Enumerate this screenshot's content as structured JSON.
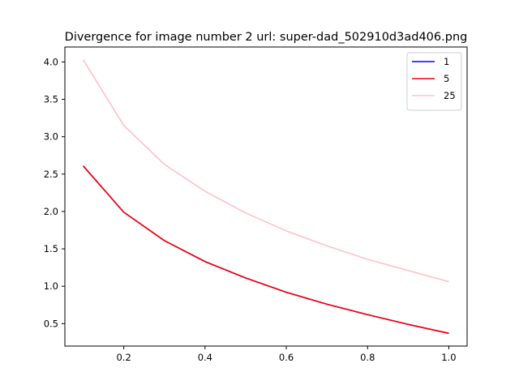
{
  "chart_data": {
    "type": "line",
    "title": "Divergence for image number 2 url: super-dad_502910d3ad406.png",
    "xlabel": "",
    "ylabel": "",
    "xlim": [
      0.055,
      1.045
    ],
    "ylim": [
      0.2,
      4.2
    ],
    "xticks": [
      0.2,
      0.4,
      0.6,
      0.8,
      1.0
    ],
    "yticks": [
      0.5,
      1.0,
      1.5,
      2.0,
      2.5,
      3.0,
      3.5,
      4.0
    ],
    "grid": false,
    "legend_position": "top-right",
    "x": [
      0.1,
      0.2,
      0.3,
      0.4,
      0.5,
      0.6,
      0.7,
      0.8,
      0.9,
      1.0
    ],
    "series": [
      {
        "name": "1",
        "color": "#0000ff",
        "values": [
          2.61,
          1.99,
          1.61,
          1.33,
          1.11,
          0.92,
          0.76,
          0.62,
          0.49,
          0.37
        ]
      },
      {
        "name": "5",
        "color": "#ff0000",
        "values": [
          2.61,
          1.99,
          1.61,
          1.33,
          1.11,
          0.92,
          0.76,
          0.62,
          0.49,
          0.37
        ]
      },
      {
        "name": "25",
        "color": "#ffc0cb",
        "values": [
          4.03,
          3.15,
          2.63,
          2.27,
          1.98,
          1.74,
          1.54,
          1.36,
          1.21,
          1.06
        ]
      }
    ]
  }
}
